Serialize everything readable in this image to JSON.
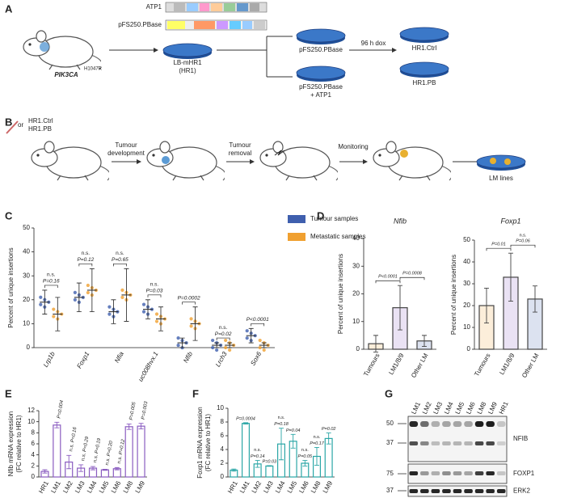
{
  "panel_labels": [
    "A",
    "B",
    "C",
    "D",
    "E",
    "F",
    "G"
  ],
  "panel_a": {
    "construct1": "ATP1",
    "construct2": "pFS250.PBase",
    "mouse_gene": "PIK3CA",
    "mouse_allele": "H1047R",
    "parental": "LB-mHR1",
    "parental_sub": "(HR1)",
    "dish1": "pFS250.PBase",
    "dish2_line1": "pFS250.PBase",
    "dish2_line2": "+ ATP1",
    "step": "96 h dox",
    "out1": "HR1.Ctrl",
    "out2": "HR1.PB"
  },
  "panel_b": {
    "or": "or",
    "inputs": [
      "HR1.Ctrl",
      "HR1.PB"
    ],
    "steps": [
      [
        "Tumour",
        "development"
      ],
      [
        "Tumour",
        "removal"
      ],
      [
        "Monitoring"
      ]
    ],
    "result": "LM lines"
  },
  "chart_data": [
    {
      "type": "dot",
      "y_label": "Percent of unique insertions",
      "categories": [
        "Lrp1b",
        "Foxp1",
        "Nfia",
        "uc008hvx.1",
        "Nfib",
        "Lrch3",
        "Sox6"
      ],
      "series": [
        {
          "name": "Tumour samples",
          "color": "#3f5fae",
          "values": [
            19,
            21,
            15,
            16,
            2,
            1,
            5
          ],
          "errors": [
            5,
            6,
            5,
            4,
            2,
            1,
            3
          ]
        },
        {
          "name": "Metastatic samples",
          "color": "#f0a030",
          "values": [
            14,
            24,
            22,
            12,
            10,
            1,
            1
          ],
          "errors": [
            7,
            9,
            11,
            5,
            7,
            1,
            1
          ]
        }
      ],
      "significance": [
        "n.s.",
        "n.s.",
        "n.s.",
        "n.s.",
        null,
        "n.s.",
        null
      ],
      "p_values": [
        "P=0.16",
        "P=0.12",
        "P=0.65",
        "P=0.03",
        "P=0.0002",
        "P=0.02",
        "P<0.0001"
      ],
      "ylim": [
        0,
        50
      ],
      "yticks": [
        0,
        10,
        20,
        30,
        40,
        50
      ]
    },
    {
      "type": "bar",
      "title": "Nfib",
      "y_label": "Percent of unique insertions",
      "categories": [
        "Tumours",
        "LM1/8/9",
        "Other LM"
      ],
      "values": [
        2,
        15,
        3
      ],
      "errors": [
        3,
        8,
        2
      ],
      "colors": [
        "#f0a030",
        "#8a5cc0",
        "#3f5fae"
      ],
      "comparisons": [
        {
          "p": "P<0.0001"
        },
        {
          "p": "P=0.0008"
        }
      ],
      "ylim": [
        0,
        40
      ],
      "yticks": [
        0,
        10,
        20,
        30,
        40
      ]
    },
    {
      "type": "bar",
      "title": "Foxp1",
      "y_label": "Percent of unique insertions",
      "categories": [
        "Tumours",
        "LM1/8/9",
        "Other LM"
      ],
      "values": [
        20,
        33,
        23
      ],
      "errors": [
        8,
        11,
        6
      ],
      "colors": [
        "#f0a030",
        "#8a5cc0",
        "#3f5fae"
      ],
      "comparisons": [
        {
          "p": "P=0.01"
        },
        {
          "sig": "n.s.",
          "p": "P=0.06"
        }
      ],
      "ylim": [
        0,
        50
      ],
      "yticks": [
        0,
        10,
        20,
        30,
        40,
        50
      ]
    },
    {
      "type": "bar",
      "y_label": "Nfib mRNA expression",
      "y_label2": "(FC relative to HR1)",
      "categories": [
        "HR1",
        "LM1",
        "LM2",
        "LM3",
        "LM4",
        "LM5",
        "LM6",
        "LM8",
        "LM9"
      ],
      "values": [
        1,
        9.4,
        2.7,
        1.6,
        1.6,
        1.3,
        1.5,
        9.1,
        9.2
      ],
      "errors": [
        0.3,
        0.5,
        1.2,
        0.6,
        0.3,
        0.1,
        0.2,
        0.5,
        0.5
      ],
      "significance": [
        null,
        null,
        "n.s.",
        "n.s.",
        "n.s.",
        "n.s.",
        "n.s.",
        null,
        null
      ],
      "p_values": [
        null,
        "P=0.004",
        "P=0.16",
        "P=0.29",
        "P=0.19",
        "P=0.20",
        "P=0.12",
        "P=0.005",
        "P=0.003"
      ],
      "color": "#8a5cc0",
      "ylim": [
        0,
        12
      ],
      "yticks": [
        0,
        2,
        4,
        6,
        8,
        10,
        12
      ]
    },
    {
      "type": "bar",
      "y_label": "Foxp1 mRNA expression",
      "y_label2": "(FC relative to HR1)",
      "categories": [
        "HR1",
        "LM1",
        "LM2",
        "LM3",
        "LM4",
        "LM5",
        "LM6",
        "LM8",
        "LM9"
      ],
      "values": [
        1,
        7.8,
        1.9,
        1.6,
        4.8,
        5.2,
        2,
        3,
        5.6
      ],
      "errors": [
        0.15,
        0.1,
        0.5,
        0.05,
        2.3,
        1,
        0.4,
        1.3,
        0.8
      ],
      "significance": [
        null,
        null,
        "n.s.",
        null,
        "n.s.",
        null,
        "n.s.",
        "n.s.",
        null
      ],
      "p_values": [
        null,
        "P=0.0004",
        "P=0.14",
        "P=0.03",
        "P=0.18",
        "P=0.04",
        "P=0.05",
        "P=0.17",
        "P=0.02"
      ],
      "color": "#2aa6a6",
      "ylim": [
        0,
        10
      ],
      "yticks": [
        0,
        2,
        4,
        6,
        8,
        10
      ]
    }
  ],
  "blot": {
    "lanes": [
      "LM1",
      "LM2",
      "LM3",
      "LM4",
      "LM5",
      "LM6",
      "LM8",
      "LM9",
      "HR1"
    ],
    "markers": [
      "50",
      "37",
      "75",
      "37"
    ],
    "proteins": [
      "NFIB",
      "FOXP1",
      "ERK2"
    ]
  }
}
